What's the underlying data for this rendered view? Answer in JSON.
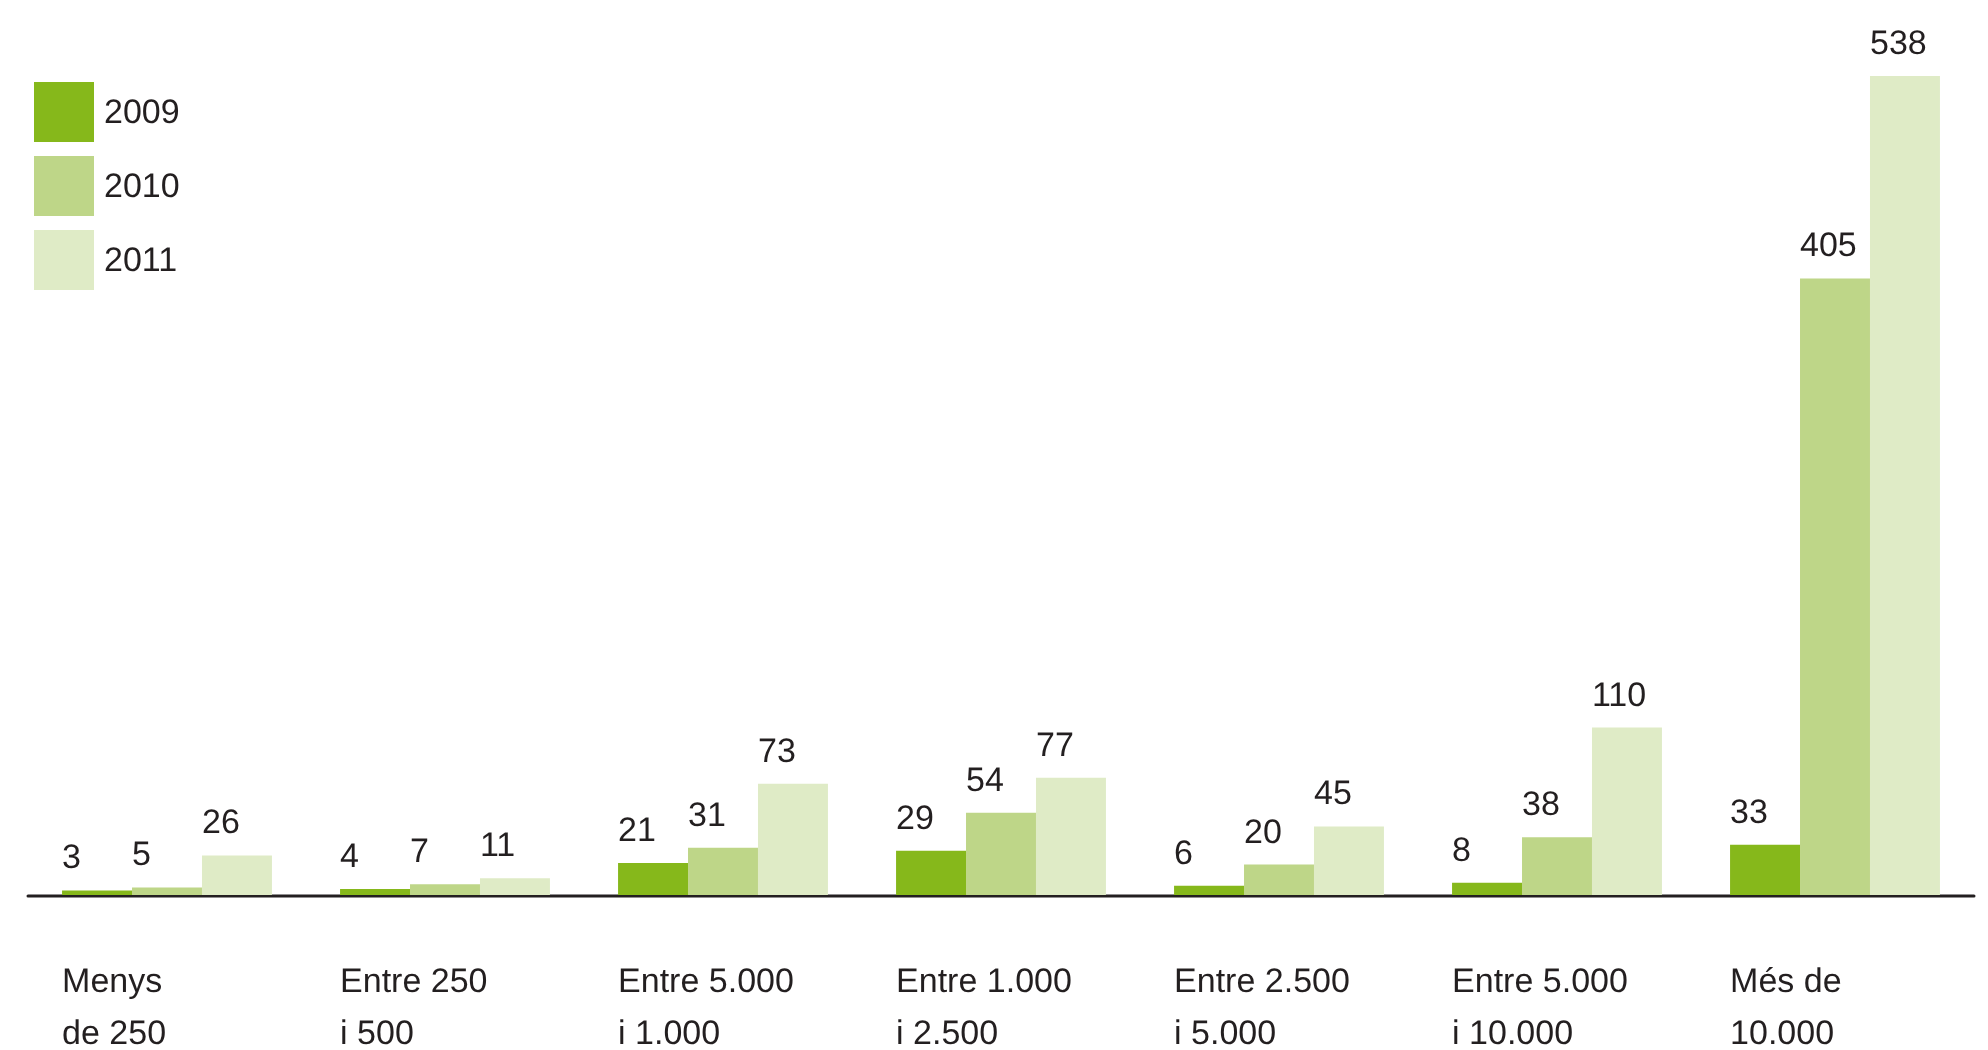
{
  "chart_data": {
    "type": "bar",
    "categories": [
      "Menys\nde 250",
      "Entre 250\ni 500",
      "Entre 5.000\ni 1.000",
      "Entre 1.000\ni 2.500",
      "Entre 2.500\ni 5.000",
      "Entre 5.000\ni 10.000",
      "Més de\n10.000"
    ],
    "series": [
      {
        "name": "2009",
        "color": "#86b81b",
        "values": [
          3,
          4,
          21,
          29,
          6,
          8,
          33
        ]
      },
      {
        "name": "2010",
        "color": "#bed688",
        "values": [
          5,
          7,
          31,
          54,
          20,
          38,
          405
        ]
      },
      {
        "name": "2011",
        "color": "#dfebc6",
        "values": [
          26,
          11,
          73,
          77,
          45,
          110,
          538
        ]
      }
    ],
    "data_labels": true,
    "legend": "top left",
    "grid": false
  }
}
